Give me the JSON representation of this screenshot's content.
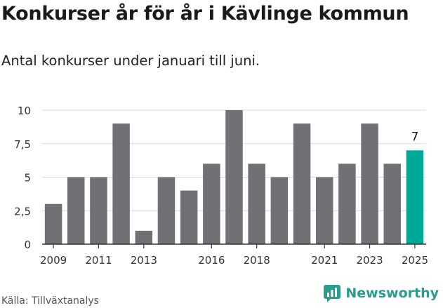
{
  "title": "Konkurser år för år i Kävlinge kommun",
  "subtitle": "Antal konkurser under januari till juni.",
  "source": "Källa: Tillväxtanalys",
  "brand": {
    "name": "Newsworthy",
    "icon": "newsworthy-logo-icon"
  },
  "colors": {
    "bar": "#717074",
    "highlight": "#00a898",
    "grid": "#d9d9d9",
    "axis": "#333333"
  },
  "chart_data": {
    "type": "bar",
    "categories": [
      "2009",
      "2010",
      "2011",
      "2012",
      "2013",
      "2014",
      "2015",
      "2016",
      "2017",
      "2018",
      "2019",
      "2020",
      "2021",
      "2022",
      "2023",
      "2024",
      "2025"
    ],
    "values": [
      3,
      5,
      5,
      9,
      1,
      5,
      4,
      6,
      10,
      6,
      5,
      9,
      5,
      6,
      9,
      6,
      7
    ],
    "highlight_index": 16,
    "highlight_label": "7",
    "y_ticks": [
      "0",
      "2,5",
      "5",
      "7,5",
      "10"
    ],
    "y_tick_values": [
      0,
      2.5,
      5,
      7.5,
      10
    ],
    "x_tick_labels": [
      "2009",
      "2011",
      "2013",
      "2016",
      "2018",
      "2021",
      "2023",
      "2025"
    ],
    "ylim": [
      0,
      10
    ],
    "grid": true,
    "xlabel": "",
    "ylabel": ""
  }
}
